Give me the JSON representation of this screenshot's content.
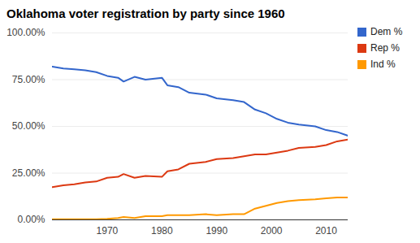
{
  "chart_data": {
    "type": "line",
    "title": "Oklahoma voter registration by party since 1960",
    "x": [
      1960,
      1962,
      1964,
      1966,
      1968,
      1970,
      1972,
      1973,
      1975,
      1977,
      1980,
      1981,
      1983,
      1985,
      1988,
      1990,
      1993,
      1995,
      1997,
      1999,
      2001,
      2003,
      2005,
      2008,
      2010,
      2012,
      2014
    ],
    "series": [
      {
        "name": "Dem %",
        "color": "#3366cc",
        "values": [
          82,
          81,
          80.5,
          80,
          79,
          77,
          76,
          74,
          76.5,
          75,
          76,
          72,
          71,
          68,
          67,
          65,
          64,
          63,
          59,
          57,
          54,
          52,
          51,
          50,
          48,
          47,
          45
        ]
      },
      {
        "name": "Rep %",
        "color": "#dc3912",
        "values": [
          17.5,
          18.5,
          19,
          20,
          20.5,
          22.5,
          23,
          24.5,
          22.5,
          23.5,
          23,
          26,
          27,
          30,
          31,
          32.5,
          33,
          34,
          35,
          35,
          36,
          37,
          38.5,
          39,
          40,
          42,
          43
        ]
      },
      {
        "name": "Ind %",
        "color": "#ff9900",
        "values": [
          0.3,
          0.3,
          0.3,
          0.3,
          0.3,
          0.5,
          1,
          1.5,
          1,
          2,
          2,
          2.5,
          2.5,
          2.5,
          3,
          2.5,
          3,
          3,
          6,
          7.5,
          9,
          10,
          10.5,
          11,
          11.5,
          12,
          12
        ]
      }
    ],
    "xlim": [
      1960,
      2014
    ],
    "xticks": [
      1970,
      1980,
      1990,
      2000,
      2010
    ],
    "ylim": [
      0,
      100
    ],
    "yticks": [
      {
        "value": 0,
        "label": "0.00%"
      },
      {
        "value": 25,
        "label": "25.00%"
      },
      {
        "value": 50,
        "label": "50.00%"
      },
      {
        "value": 75,
        "label": "75.00%"
      },
      {
        "value": 100,
        "label": "100.00%"
      }
    ],
    "grid": true,
    "legend": "top-right"
  }
}
